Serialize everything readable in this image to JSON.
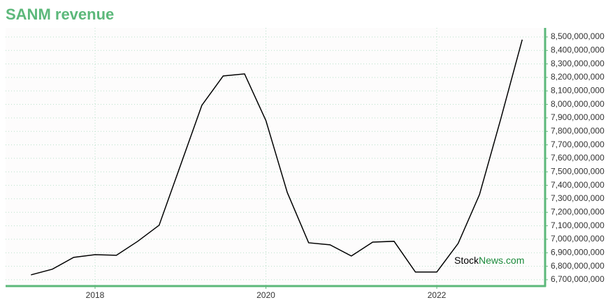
{
  "chart_data": {
    "type": "line",
    "title": "SANM revenue",
    "watermark": {
      "first": "Stock",
      "second": "News.com"
    },
    "x": [
      2017.25,
      2017.5,
      2017.75,
      2018.0,
      2018.25,
      2018.5,
      2018.75,
      2019.0,
      2019.25,
      2019.5,
      2019.75,
      2020.0,
      2020.25,
      2020.5,
      2020.75,
      2021.0,
      2021.25,
      2021.5,
      2021.75,
      2022.0,
      2022.25,
      2022.5,
      2022.75,
      2023.0
    ],
    "values": [
      6736000000,
      6778000000,
      6866000000,
      6886000000,
      6881000000,
      6985000000,
      7104000000,
      7548000000,
      7993000000,
      8211000000,
      8226000000,
      7880000000,
      7347000000,
      6974000000,
      6959000000,
      6876000000,
      6979000000,
      6985000000,
      6757000000,
      6757000000,
      6969000000,
      7331000000,
      7895000000,
      8480000000
    ],
    "color": "#000000",
    "xlim": [
      2016.953,
      2023.268
    ],
    "xticks": [
      2018,
      2020,
      2022
    ],
    "ylim": [
      6653000000,
      8567000000
    ],
    "yticks": [
      {
        "value": 6700000000,
        "label": "6,700,000,000"
      },
      {
        "value": 6800000000,
        "label": "6,800,000,000"
      },
      {
        "value": 6900000000,
        "label": "6,900,000,000"
      },
      {
        "value": 7000000000,
        "label": "7,000,000,000"
      },
      {
        "value": 7100000000,
        "label": "7,100,000,000"
      },
      {
        "value": 7200000000,
        "label": "7,200,000,000"
      },
      {
        "value": 7300000000,
        "label": "7,300,000,000"
      },
      {
        "value": 7400000000,
        "label": "7,400,000,000"
      },
      {
        "value": 7500000000,
        "label": "7,500,000,000"
      },
      {
        "value": 7600000000,
        "label": "7,600,000,000"
      },
      {
        "value": 7700000000,
        "label": "7,700,000,000"
      },
      {
        "value": 7800000000,
        "label": "7,800,000,000"
      },
      {
        "value": 7900000000,
        "label": "7,900,000,000"
      },
      {
        "value": 8000000000,
        "label": "8,000,000,000"
      },
      {
        "value": 8100000000,
        "label": "8,100,000,000"
      },
      {
        "value": 8200000000,
        "label": "8,200,000,000"
      },
      {
        "value": 8300000000,
        "label": "8,300,000,000"
      },
      {
        "value": 8400000000,
        "label": "8,400,000,000"
      },
      {
        "value": 8500000000,
        "label": "8,500,000,000"
      }
    ],
    "grid": true,
    "axis_color": "#5cb87a"
  }
}
